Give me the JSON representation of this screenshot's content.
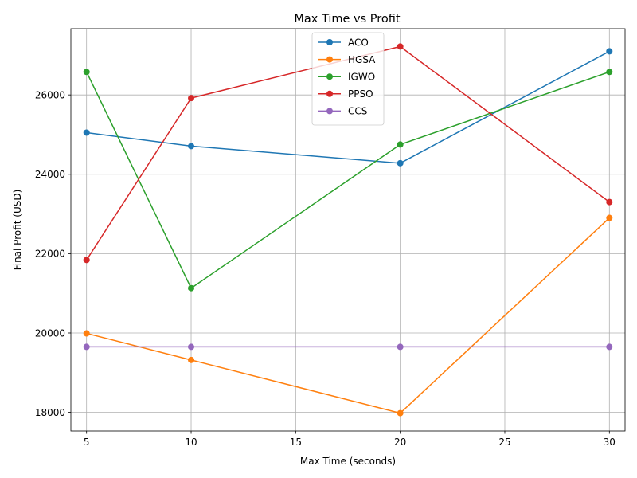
{
  "chart_data": {
    "type": "line",
    "title": "Max Time vs Profit",
    "xlabel": "Max Time (seconds)",
    "ylabel": "Final Profit (USD)",
    "x": [
      5,
      10,
      20,
      30
    ],
    "xlim": [
      4.25,
      30.75
    ],
    "ylim": [
      17530,
      27670
    ],
    "xticks": [
      5,
      10,
      15,
      20,
      25,
      30
    ],
    "yticks": [
      18000,
      20000,
      22000,
      24000,
      26000
    ],
    "grid": true,
    "legend_position": "top-center",
    "series": [
      {
        "name": "ACO",
        "color": "#1f77b4",
        "values": [
          25050,
          24710,
          24280,
          27100
        ]
      },
      {
        "name": "HGSA",
        "color": "#ff7f0e",
        "values": [
          19990,
          19320,
          17980,
          22900
        ]
      },
      {
        "name": "IGWO",
        "color": "#2ca02c",
        "values": [
          26580,
          21130,
          24750,
          26580
        ]
      },
      {
        "name": "PPSO",
        "color": "#d62728",
        "values": [
          21840,
          25920,
          27220,
          23300
        ]
      },
      {
        "name": "CCS",
        "color": "#9467bd",
        "values": [
          19650,
          19650,
          19650,
          19650
        ]
      }
    ]
  }
}
